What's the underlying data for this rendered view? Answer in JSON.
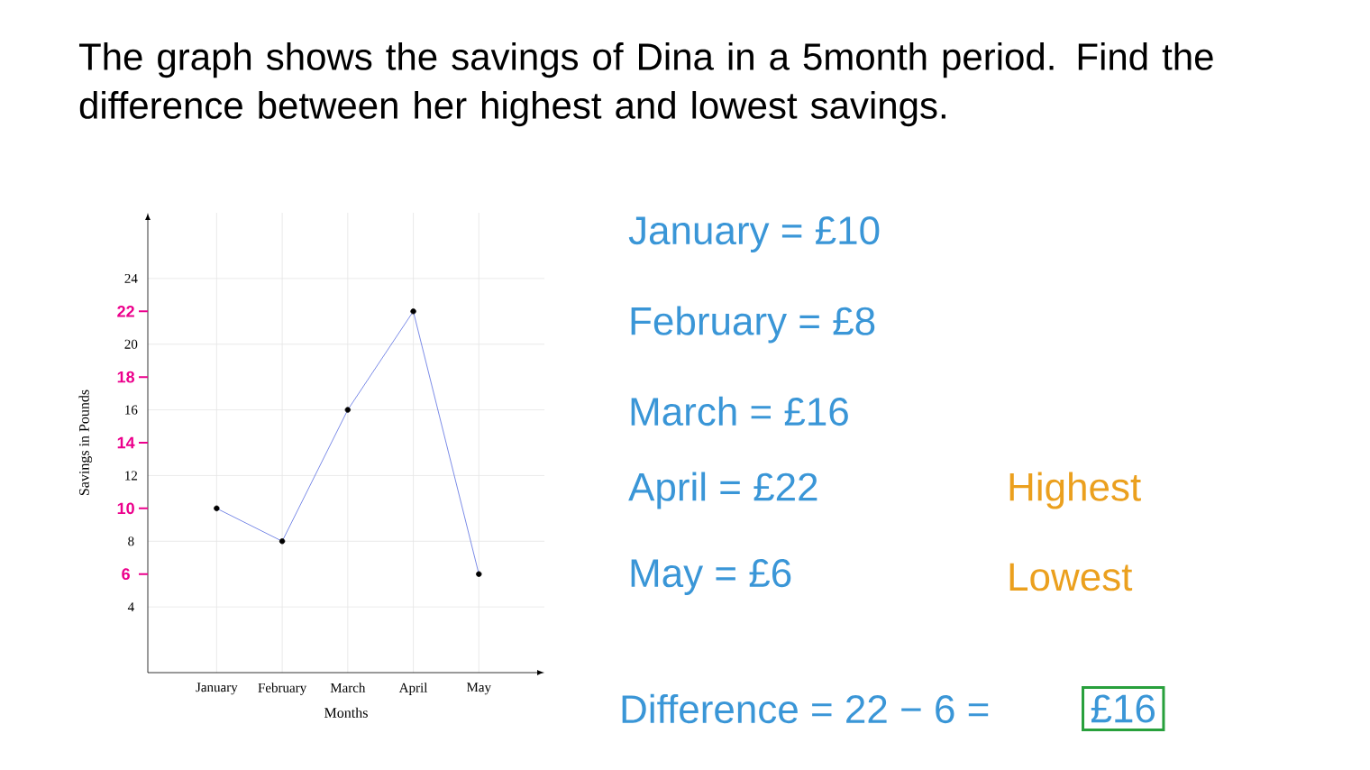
{
  "chart_data": {
    "type": "line",
    "title": "The graph shows the savings of Dina in a 5month period. Find the difference between her highest and lowest savings.",
    "categories": [
      "January",
      "February",
      "March",
      "April",
      "May"
    ],
    "series": [
      {
        "color": "#5b6ee1",
        "values": [
          10,
          8,
          16,
          22,
          6
        ]
      }
    ],
    "xlabel": "Months",
    "ylabel": "Savings in Pounds",
    "ylim": [
      0,
      28
    ],
    "yticks": [
      4,
      {
        "value": 6,
        "label": "6"
      },
      8,
      {
        "value": 10,
        "label": "10"
      },
      12,
      {
        "value": 14,
        "label": "14"
      },
      16,
      {
        "value": 18,
        "label": "18"
      },
      20,
      {
        "value": 22,
        "label": "22"
      },
      24
    ],
    "grid": true,
    "marker": "circle",
    "annotations": [
      "January = £10",
      "February = £8",
      "March = £16",
      "April = £22",
      "Highest",
      "May = £6",
      "Lowest",
      "Difference = 22 − 6 =",
      "£16"
    ]
  }
}
